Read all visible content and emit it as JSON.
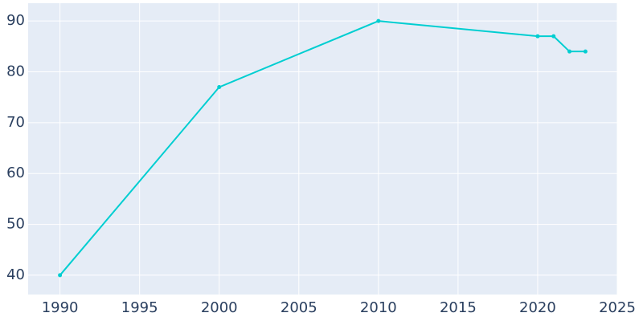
{
  "chart_data": {
    "type": "line",
    "x": [
      1990,
      2000,
      2010,
      2020,
      2021,
      2022,
      2023
    ],
    "series": [
      {
        "color": "#00ced1",
        "values": [
          40,
          77,
          90,
          87,
          87,
          84,
          84
        ]
      }
    ],
    "xlim": [
      1988,
      2025
    ],
    "xticks": [
      1990,
      1995,
      2000,
      2005,
      2010,
      2015,
      2020,
      2025
    ],
    "ylim": [
      36.2,
      93.5
    ],
    "yticks": [
      40,
      50,
      60,
      70,
      80,
      90
    ],
    "grid": true
  }
}
